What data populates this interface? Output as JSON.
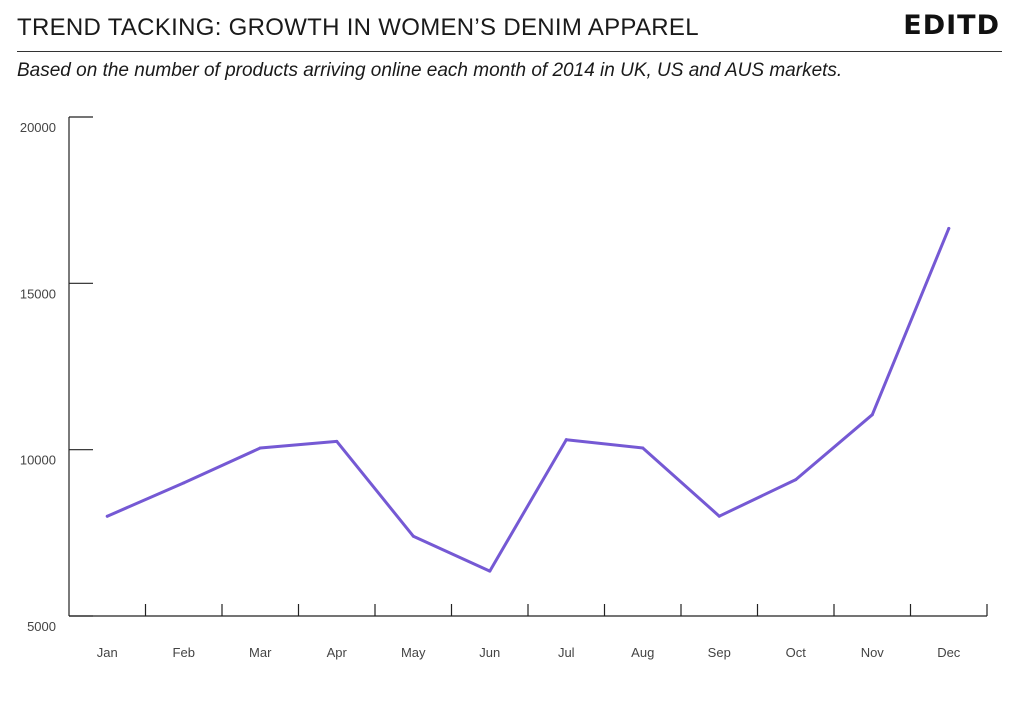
{
  "header": {
    "title": "TREND TACKING: GROWTH IN WOMEN’S DENIM APPAREL",
    "subtitle": "Based on the number of products arriving online each month of 2014 in UK, US and AUS markets.",
    "logo_text": "EDITD"
  },
  "colors": {
    "line": "#7559d4",
    "axis": "#222222",
    "text": "#1a1a1a"
  },
  "chart_data": {
    "type": "line",
    "categories": [
      "Jan",
      "Feb",
      "Mar",
      "Apr",
      "May",
      "Jun",
      "Jul",
      "Aug",
      "Sep",
      "Oct",
      "Nov",
      "Dec"
    ],
    "series": [
      {
        "values": [
          8000,
          9000,
          10050,
          10250,
          7400,
          6350,
          10300,
          10050,
          8000,
          9100,
          11050,
          16650
        ]
      }
    ],
    "yticks": [
      5000,
      10000,
      15000,
      20000
    ],
    "ylim": [
      5000,
      20000
    ],
    "xlabel": "",
    "ylabel": "",
    "grid": false,
    "legend": "none"
  }
}
